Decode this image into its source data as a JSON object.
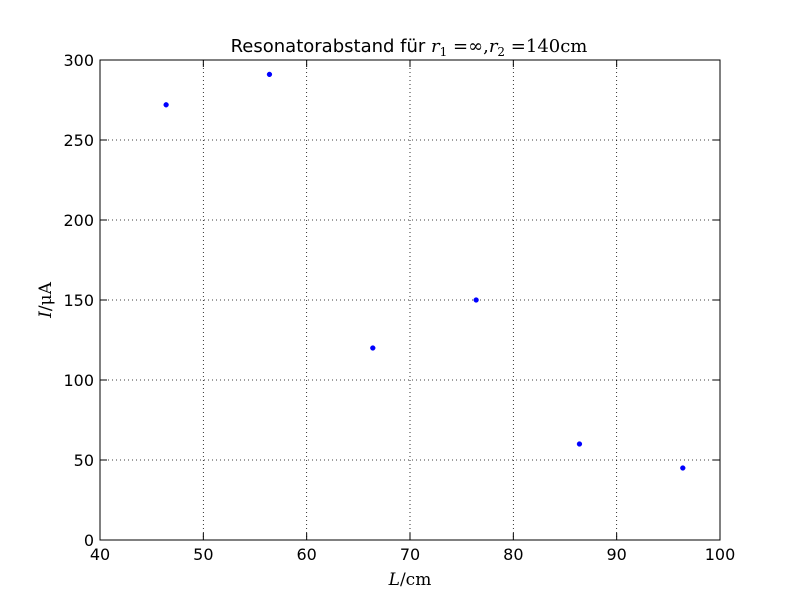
{
  "chart_data": {
    "type": "scatter",
    "title": {
      "prefix": "Resonatorabstand für ",
      "r1_symbol": "r",
      "r1_sub": "1",
      "r1_value": " =∞,",
      "r2_symbol": "r",
      "r2_sub": "2",
      "r2_value": " =140cm"
    },
    "xlabel": {
      "symbol": "L",
      "unit": "/cm"
    },
    "ylabel": {
      "symbol": "I",
      "unit": "/μA"
    },
    "xlim": [
      40,
      100
    ],
    "ylim": [
      0,
      300
    ],
    "xticks": [
      40,
      50,
      60,
      70,
      80,
      90,
      100
    ],
    "yticks": [
      0,
      50,
      100,
      150,
      200,
      250,
      300
    ],
    "grid": true,
    "marker_color": "#0000ff",
    "series": [
      {
        "x": [
          46.4,
          56.4,
          66.4,
          76.4,
          86.4,
          96.4
        ],
        "y": [
          272,
          291,
          120,
          150,
          60,
          45
        ]
      }
    ]
  }
}
